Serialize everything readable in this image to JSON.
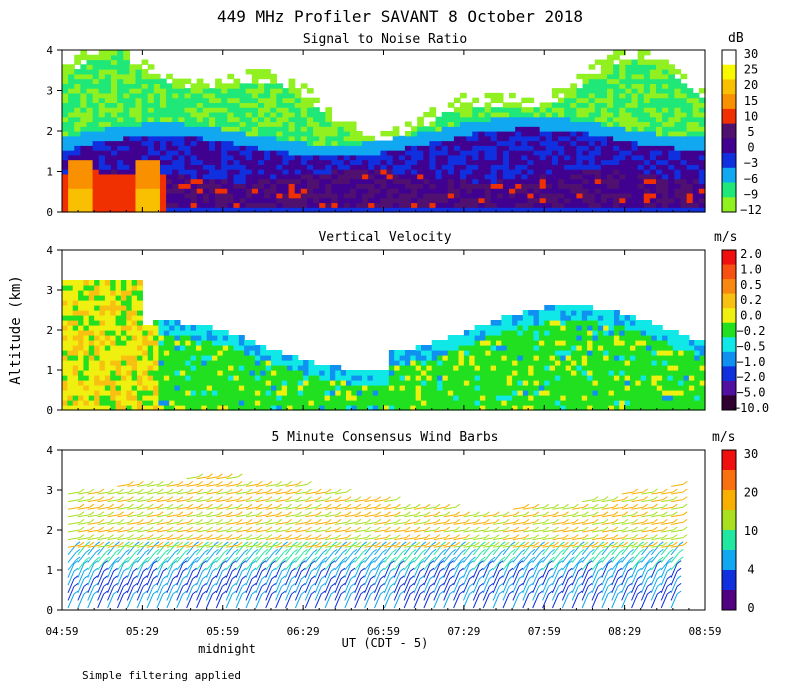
{
  "figure": {
    "title": "449 MHz Profiler SAVANT  8 October 2018",
    "ylabel": "Altitude (km)",
    "xlabel": "UT (CDT - 5)",
    "midnight_label": "midnight",
    "footer_note": "Simple filtering applied"
  },
  "chart_data": [
    {
      "type": "heatmap",
      "title": "Signal to Noise Ratio",
      "unit": "dB",
      "x_ticks": [
        "04:59",
        "05:29",
        "05:59",
        "06:29",
        "06:59",
        "07:29",
        "07:59",
        "08:29",
        "08:59"
      ],
      "y_ticks": [
        "0",
        "1",
        "2",
        "3",
        "4"
      ],
      "ylim": [
        0,
        4
      ],
      "colorbar_labels": [
        "30",
        "25",
        "20",
        "15",
        "10",
        "5",
        "0",
        "−3",
        "−6",
        "−9",
        "−12"
      ],
      "colorbar_colors": [
        "#ffffff",
        "#f8f800",
        "#f8c000",
        "#f89000",
        "#f03000",
        "#501070",
        "#400090",
        "#1030e0",
        "#10a8f0",
        "#20e878",
        "#90f020"
      ]
    },
    {
      "type": "heatmap",
      "title": "Vertical Velocity",
      "unit": "m/s",
      "x_ticks": [
        "04:59",
        "05:29",
        "05:59",
        "06:29",
        "06:59",
        "07:29",
        "07:59",
        "08:29",
        "08:59"
      ],
      "y_ticks": [
        "0",
        "1",
        "2",
        "3",
        "4"
      ],
      "ylim": [
        0,
        4
      ],
      "colorbar_labels": [
        "2.0",
        "1.0",
        "0.5",
        "0.2",
        "0.0",
        "−0.2",
        "−0.5",
        "−1.0",
        "−2.0",
        "−5.0",
        "−10.0"
      ],
      "colorbar_colors": [
        "#f01010",
        "#f85010",
        "#f88810",
        "#f8c010",
        "#f0f010",
        "#20e020",
        "#10e8e8",
        "#1090f0",
        "#1030e0",
        "#5010a0",
        "#300030"
      ]
    },
    {
      "type": "scatter",
      "title": "5 Minute Consensus Wind Barbs",
      "unit": "m/s",
      "x_ticks": [
        "04:59",
        "05:29",
        "05:59",
        "06:29",
        "06:59",
        "07:29",
        "07:59",
        "08:29",
        "08:59"
      ],
      "y_ticks": [
        "0",
        "1",
        "2",
        "3",
        "4"
      ],
      "ylim": [
        0,
        4
      ],
      "colorbar_labels": [
        "30",
        "20",
        "10",
        "4",
        "0"
      ],
      "colorbar_colors": [
        "#f01010",
        "#f87010",
        "#f8b000",
        "#a8e020",
        "#20e8a0",
        "#10a8f0",
        "#1030e0",
        "#500080"
      ]
    }
  ]
}
